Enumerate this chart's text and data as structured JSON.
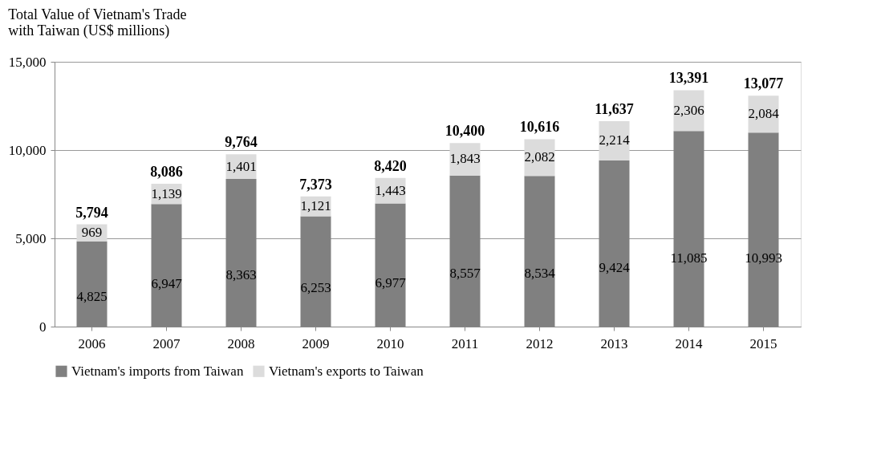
{
  "chart_data": {
    "type": "bar",
    "title": "Total Value of Vietnam's Trade\nwith Taiwan (US$ millions)",
    "stacked": true,
    "categories": [
      "2006",
      "2007",
      "2008",
      "2009",
      "2010",
      "2011",
      "2012",
      "2013",
      "2014",
      "2015"
    ],
    "series": [
      {
        "name": "Vietnam's imports from Taiwan",
        "color": "#808080",
        "values": [
          4825,
          6947,
          8363,
          6253,
          6977,
          8557,
          8534,
          9424,
          11085,
          10993
        ],
        "value_labels": [
          "4,825",
          "6,947",
          "8,363",
          "6,253",
          "6,977",
          "8,557",
          "8,534",
          "9,424",
          "11,085",
          "10,993"
        ]
      },
      {
        "name": "Vietnam's exports to Taiwan",
        "color": "#dcdcdc",
        "values": [
          969,
          1139,
          1401,
          1121,
          1443,
          1843,
          2082,
          2214,
          2306,
          2084
        ],
        "value_labels": [
          "969",
          "1,139",
          "1,401",
          "1,121",
          "1,443",
          "1,843",
          "2,082",
          "2,214",
          "2,306",
          "2,084"
        ]
      }
    ],
    "totals": [
      "5,794",
      "8,086",
      "9,764",
      "7,373",
      "8,420",
      "10,400",
      "10,616",
      "11,637",
      "13,391",
      "13,077"
    ],
    "ylim": [
      0,
      15000
    ],
    "yticks": [
      0,
      {
        "value": 5000,
        "label": "5,000"
      },
      {
        "value": 10000,
        "label": "10,000"
      },
      {
        "value": 15000,
        "label": "15,000"
      }
    ],
    "grid": "y",
    "legend": "bottom"
  }
}
